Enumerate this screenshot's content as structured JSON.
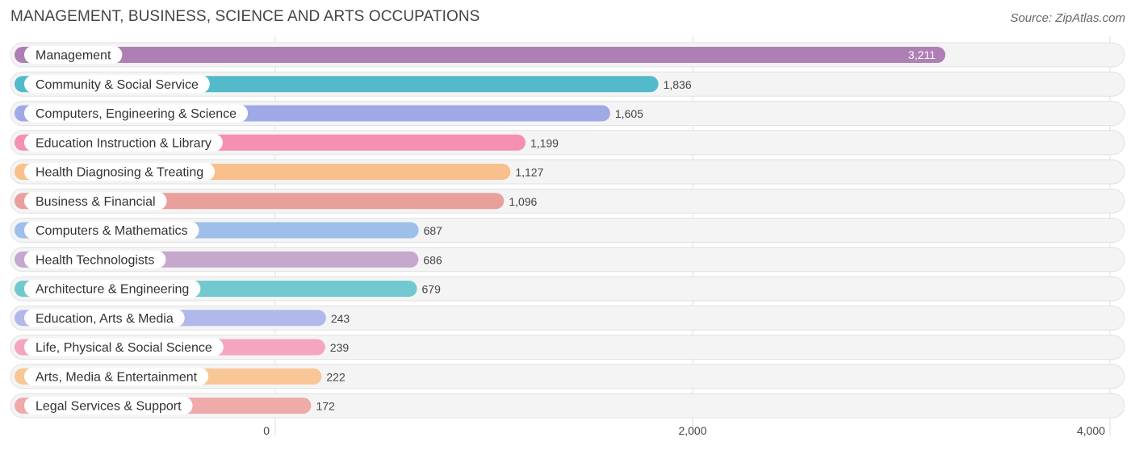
{
  "title": "MANAGEMENT, BUSINESS, SCIENCE AND ARTS OCCUPATIONS",
  "source": "Source: ZipAtlas.com",
  "chart_data": {
    "type": "bar",
    "orientation": "horizontal",
    "categories": [
      "Management",
      "Community & Social Service",
      "Computers, Engineering & Science",
      "Education Instruction & Library",
      "Health Diagnosing & Treating",
      "Business & Financial",
      "Computers & Mathematics",
      "Health Technologists",
      "Architecture & Engineering",
      "Education, Arts & Media",
      "Life, Physical & Social Science",
      "Arts, Media & Entertainment",
      "Legal Services & Support"
    ],
    "values": [
      3211,
      1836,
      1605,
      1199,
      1127,
      1096,
      687,
      686,
      679,
      243,
      239,
      222,
      172
    ],
    "value_labels": [
      "3,211",
      "1,836",
      "1,605",
      "1,199",
      "1,127",
      "1,096",
      "687",
      "686",
      "679",
      "243",
      "239",
      "222",
      "172"
    ],
    "colors": [
      "#ae7fb5",
      "#52bac8",
      "#9fa9e6",
      "#f590b3",
      "#f9c08c",
      "#e9a09c",
      "#9dbfea",
      "#c6a8cc",
      "#72c8cf",
      "#b1b8ec",
      "#f6a5c1",
      "#f9c796",
      "#efabaa"
    ],
    "xlim": [
      0,
      4000
    ],
    "x_ticks": [
      0,
      2000,
      4000
    ],
    "x_tick_labels": [
      "0",
      "2,000",
      "4,000"
    ],
    "grid": true,
    "legend": "none"
  }
}
